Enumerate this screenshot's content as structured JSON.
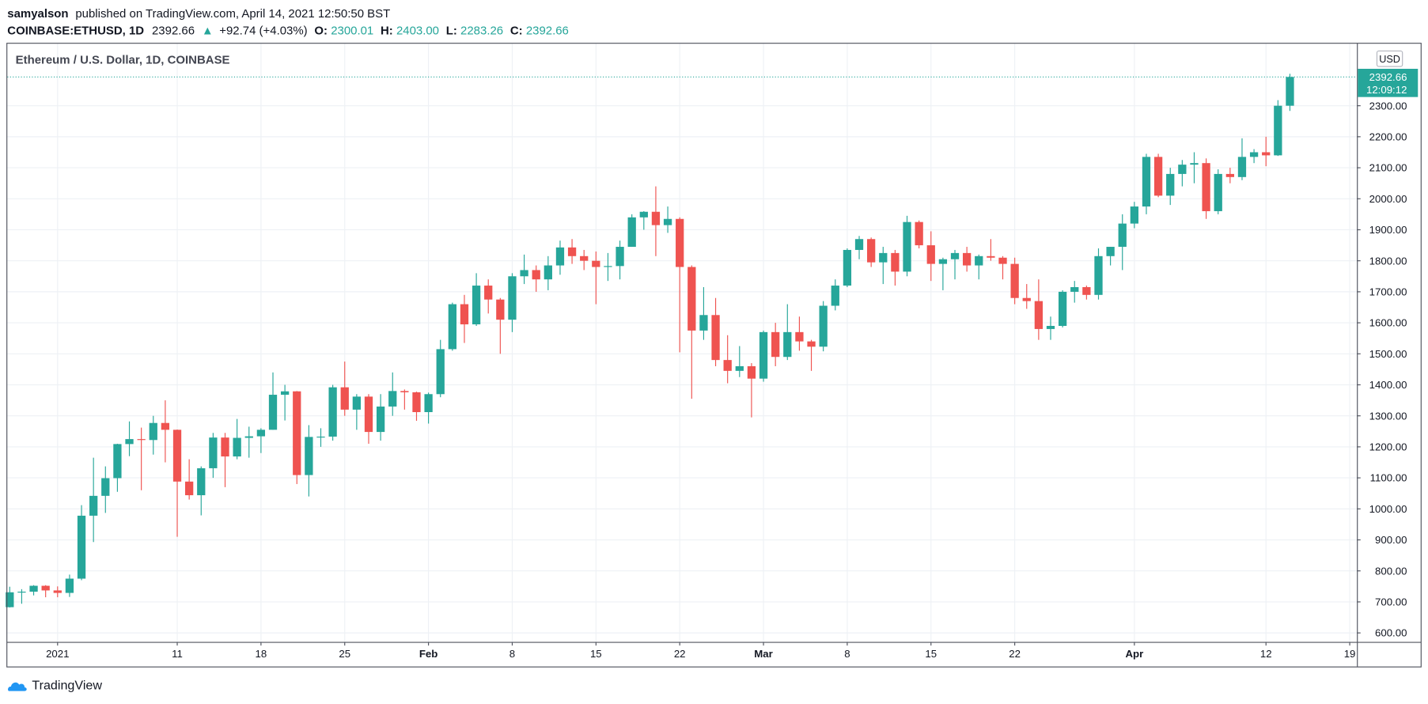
{
  "header": {
    "publisher": "samyalson",
    "published": "published on TradingView.com, April 14, 2021 12:50:50 BST",
    "symbol": "COINBASE:ETHUSD, 1D",
    "last": "2392.66",
    "arrow": "▲",
    "change": "+92.74 (+4.03%)",
    "open_label": "O:",
    "open": "2300.01",
    "high_label": "H:",
    "high": "2403.00",
    "low_label": "L:",
    "low": "2283.26",
    "close_label": "C:",
    "close": "2392.66"
  },
  "chart_data": {
    "type": "candlestick",
    "title": "Ethereum / U.S. Dollar, 1D, COINBASE",
    "currency": "USD",
    "countdown": "12:09:12",
    "up_color": "#26a69a",
    "down_color": "#ef5350",
    "grid": true,
    "open": [
      683,
      731,
      733,
      752,
      737,
      729,
      775,
      978,
      1042,
      1099,
      1209,
      1225,
      1222,
      1277,
      1255,
      1088,
      1044,
      1131,
      1230,
      1169,
      1229,
      1234,
      1255,
      1368,
      1379,
      1109,
      1232,
      1233,
      1392,
      1320,
      1362,
      1248,
      1330,
      1380,
      1376,
      1312,
      1370,
      1515,
      1660,
      1595,
      1720,
      1675,
      1610,
      1750,
      1770,
      1740,
      1785,
      1843,
      1815,
      1800,
      1780,
      1783,
      1845,
      1940,
      1958,
      1915,
      1935,
      1780,
      1575,
      1625,
      1480,
      1445,
      1460,
      1420,
      1570,
      1490,
      1570,
      1540,
      1523,
      1655,
      1720,
      1835,
      1870,
      1795,
      1825,
      1765,
      1925,
      1850,
      1790,
      1805,
      1825,
      1785,
      1815,
      1810,
      1790,
      1680,
      1670,
      1580,
      1590,
      1700,
      1715,
      1690,
      1815,
      1845,
      1920,
      1975,
      2135,
      2010,
      2080,
      2110,
      2115,
      1960,
      2080,
      2070,
      2135,
      2150,
      2140,
      2300.01
    ],
    "high": [
      749,
      741,
      754,
      754,
      750,
      788,
      1012,
      1165,
      1137,
      1210,
      1282,
      1262,
      1300,
      1350,
      1256,
      1160,
      1137,
      1245,
      1245,
      1290,
      1265,
      1260,
      1440,
      1400,
      1380,
      1270,
      1260,
      1400,
      1475,
      1370,
      1370,
      1370,
      1440,
      1385,
      1378,
      1375,
      1545,
      1665,
      1690,
      1760,
      1740,
      1680,
      1760,
      1820,
      1785,
      1815,
      1865,
      1870,
      1835,
      1830,
      1825,
      1865,
      1950,
      1960,
      2040,
      1975,
      1940,
      1785,
      1715,
      1680,
      1560,
      1525,
      1470,
      1575,
      1600,
      1660,
      1620,
      1545,
      1670,
      1740,
      1840,
      1880,
      1875,
      1845,
      1835,
      1945,
      1930,
      1895,
      1810,
      1835,
      1845,
      1820,
      1870,
      1815,
      1810,
      1725,
      1740,
      1620,
      1705,
      1735,
      1720,
      1840,
      1845,
      1950,
      1990,
      2145,
      2145,
      2100,
      2125,
      2150,
      2130,
      2095,
      2100,
      2195,
      2160,
      2200,
      2318,
      2403
    ],
    "low": [
      682,
      694,
      721,
      715,
      715,
      716,
      770,
      893,
      987,
      1055,
      1170,
      1060,
      1175,
      1150,
      910,
      1030,
      979,
      1100,
      1070,
      1160,
      1165,
      1180,
      1255,
      1285,
      1080,
      1040,
      1200,
      1220,
      1300,
      1255,
      1210,
      1220,
      1300,
      1320,
      1284,
      1275,
      1360,
      1510,
      1535,
      1590,
      1630,
      1500,
      1570,
      1725,
      1700,
      1705,
      1755,
      1790,
      1770,
      1660,
      1735,
      1740,
      1845,
      1900,
      1815,
      1890,
      1505,
      1355,
      1545,
      1460,
      1405,
      1425,
      1295,
      1410,
      1460,
      1480,
      1510,
      1445,
      1508,
      1640,
      1715,
      1805,
      1780,
      1725,
      1720,
      1750,
      1840,
      1735,
      1705,
      1740,
      1765,
      1740,
      1800,
      1740,
      1660,
      1645,
      1545,
      1545,
      1585,
      1665,
      1675,
      1675,
      1785,
      1770,
      1905,
      1950,
      2005,
      1980,
      2040,
      2050,
      1935,
      1950,
      2050,
      2060,
      2115,
      2105,
      2138,
      2283.26
    ],
    "close": [
      731,
      733,
      752,
      737,
      729,
      775,
      978,
      1042,
      1099,
      1209,
      1225,
      1222,
      1277,
      1255,
      1088,
      1044,
      1131,
      1230,
      1169,
      1229,
      1234,
      1255,
      1368,
      1379,
      1109,
      1232,
      1233,
      1392,
      1320,
      1362,
      1248,
      1330,
      1380,
      1376,
      1312,
      1370,
      1515,
      1660,
      1595,
      1720,
      1675,
      1610,
      1750,
      1770,
      1740,
      1785,
      1843,
      1815,
      1800,
      1780,
      1783,
      1845,
      1940,
      1958,
      1915,
      1935,
      1780,
      1575,
      1625,
      1480,
      1445,
      1460,
      1420,
      1570,
      1490,
      1570,
      1540,
      1523,
      1655,
      1720,
      1835,
      1870,
      1795,
      1825,
      1765,
      1925,
      1850,
      1790,
      1805,
      1825,
      1785,
      1815,
      1810,
      1790,
      1680,
      1670,
      1580,
      1590,
      1700,
      1715,
      1690,
      1815,
      1845,
      1920,
      1975,
      2135,
      2010,
      2080,
      2110,
      2115,
      1960,
      2080,
      2070,
      2135,
      2150,
      2140,
      2300,
      2392.66
    ],
    "xlim": [
      -0.2,
      112.6
    ],
    "xticks": [
      {
        "value": 4,
        "label": "2021"
      },
      {
        "value": 14,
        "label": "11"
      },
      {
        "value": 21,
        "label": "18"
      },
      {
        "value": 28,
        "label": "25"
      },
      {
        "value": 35,
        "label": "Feb"
      },
      {
        "value": 42,
        "label": "8"
      },
      {
        "value": 49,
        "label": "15"
      },
      {
        "value": 56,
        "label": "22"
      },
      {
        "value": 63,
        "label": "Mar"
      },
      {
        "value": 70,
        "label": "8"
      },
      {
        "value": 77,
        "label": "15"
      },
      {
        "value": 84,
        "label": "22"
      },
      {
        "value": 94,
        "label": "Apr"
      },
      {
        "value": 105,
        "label": "12"
      },
      {
        "value": 112,
        "label": "19"
      }
    ],
    "ylim": [
      571,
      2500
    ],
    "yticks": [
      {
        "value": 600,
        "label": "600.00"
      },
      {
        "value": 700,
        "label": "700.00"
      },
      {
        "value": 800,
        "label": "800.00"
      },
      {
        "value": 900,
        "label": "900.00"
      },
      {
        "value": 1000,
        "label": "1000.00"
      },
      {
        "value": 1100,
        "label": "1100.00"
      },
      {
        "value": 1200,
        "label": "1200.00"
      },
      {
        "value": 1300,
        "label": "1300.00"
      },
      {
        "value": 1400,
        "label": "1400.00"
      },
      {
        "value": 1500,
        "label": "1500.00"
      },
      {
        "value": 1600,
        "label": "1600.00"
      },
      {
        "value": 1700,
        "label": "1700.00"
      },
      {
        "value": 1800,
        "label": "1800.00"
      },
      {
        "value": 1900,
        "label": "1900.00"
      },
      {
        "value": 2000,
        "label": "2000.00"
      },
      {
        "value": 2100,
        "label": "2100.00"
      },
      {
        "value": 2200,
        "label": "2200.00"
      },
      {
        "value": 2300,
        "label": "2300.00"
      }
    ]
  },
  "footer": {
    "brand": "TradingView"
  }
}
